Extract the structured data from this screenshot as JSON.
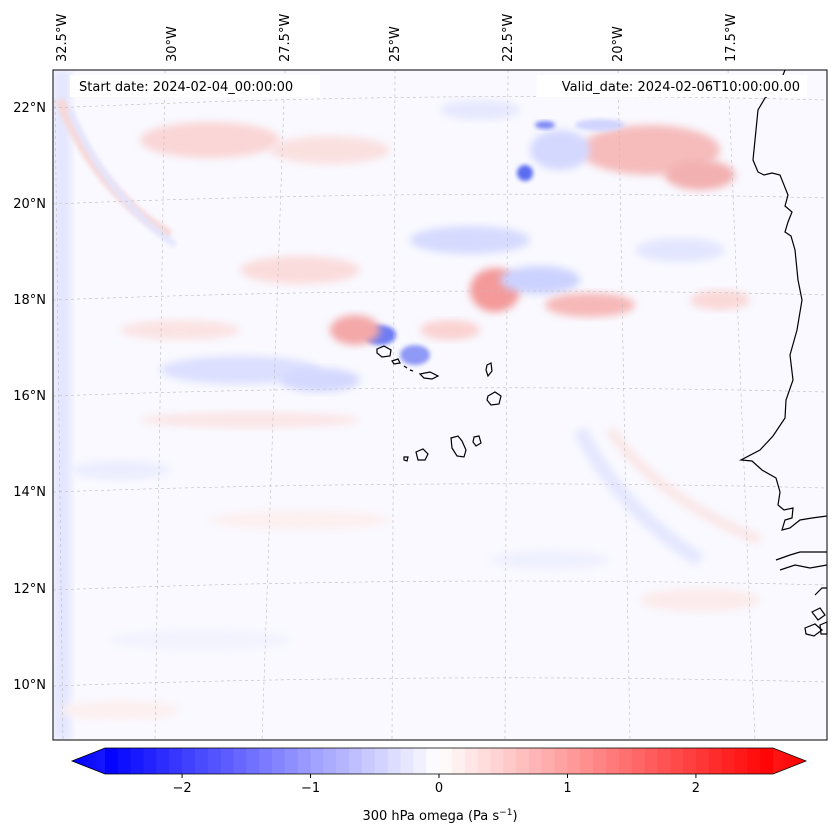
{
  "map": {
    "start_date_text": "Start date: 2024-02-04_00:00:00",
    "valid_date_text": "Valid_date: 2024-02-06T10:00:00.00",
    "lon_labels": [
      "32.5°W",
      "30°W",
      "27.5°W",
      "25°W",
      "22.5°W",
      "20°W",
      "17.5°W"
    ],
    "lat_labels": [
      "22°N",
      "20°N",
      "18°N",
      "16°N",
      "14°N",
      "12°N",
      "10°N"
    ],
    "features": [
      "Cape Verde islands",
      "West African coastline"
    ]
  },
  "colorbar": {
    "label": "300 hPa omega (Pa s",
    "label_sup": "−1",
    "label_close": ")",
    "ticks": [
      "−2",
      "−1",
      "0",
      "1",
      "2"
    ],
    "tick_values": [
      -2,
      -1,
      0,
      1,
      2
    ],
    "range": [
      -2.6,
      2.6
    ],
    "colors": {
      "neg": "#0000ff",
      "zero": "#ffffff",
      "pos": "#ff0000"
    }
  }
}
